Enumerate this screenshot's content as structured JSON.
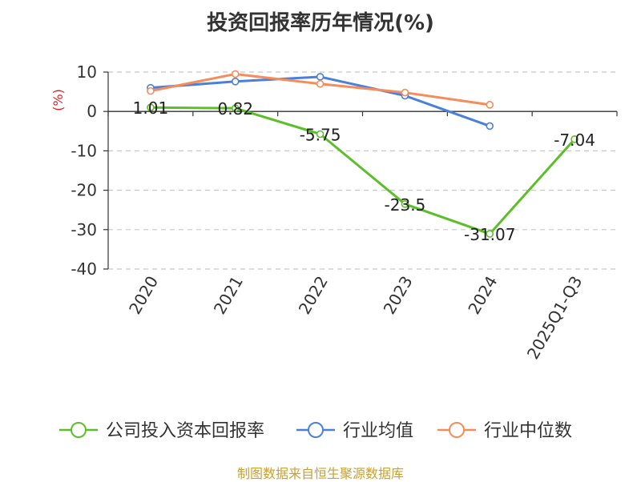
{
  "chart_data": {
    "type": "line",
    "title": "投资回报率历年情况(%)",
    "ylabel": "(%)",
    "xlabel": "",
    "categories": [
      "2020",
      "2021",
      "2022",
      "2023",
      "2024",
      "2025Q1-Q3"
    ],
    "ylim": [
      -40,
      10
    ],
    "yticks": [
      10,
      0,
      -10,
      -20,
      -30,
      -40
    ],
    "grid": true,
    "legend_position": "bottom",
    "series": [
      {
        "name": "公司投入资本回报率",
        "color": "#5cbf2a",
        "values": [
          1.01,
          0.82,
          -5.75,
          -23.5,
          -31.07,
          -7.04
        ],
        "labels": [
          "1.01",
          "0.82",
          "-5.75",
          "-23.5",
          "-31.07",
          "-7.04"
        ]
      },
      {
        "name": "行业均值",
        "color": "#4a7fdc",
        "values": [
          6.0,
          7.6,
          8.8,
          4.0,
          -3.7,
          null
        ]
      },
      {
        "name": "行业中位数",
        "color": "#f58c5a",
        "values": [
          5.2,
          9.5,
          7.0,
          4.8,
          1.7,
          null
        ]
      }
    ]
  },
  "source": "制图数据来自恒生聚源数据库"
}
